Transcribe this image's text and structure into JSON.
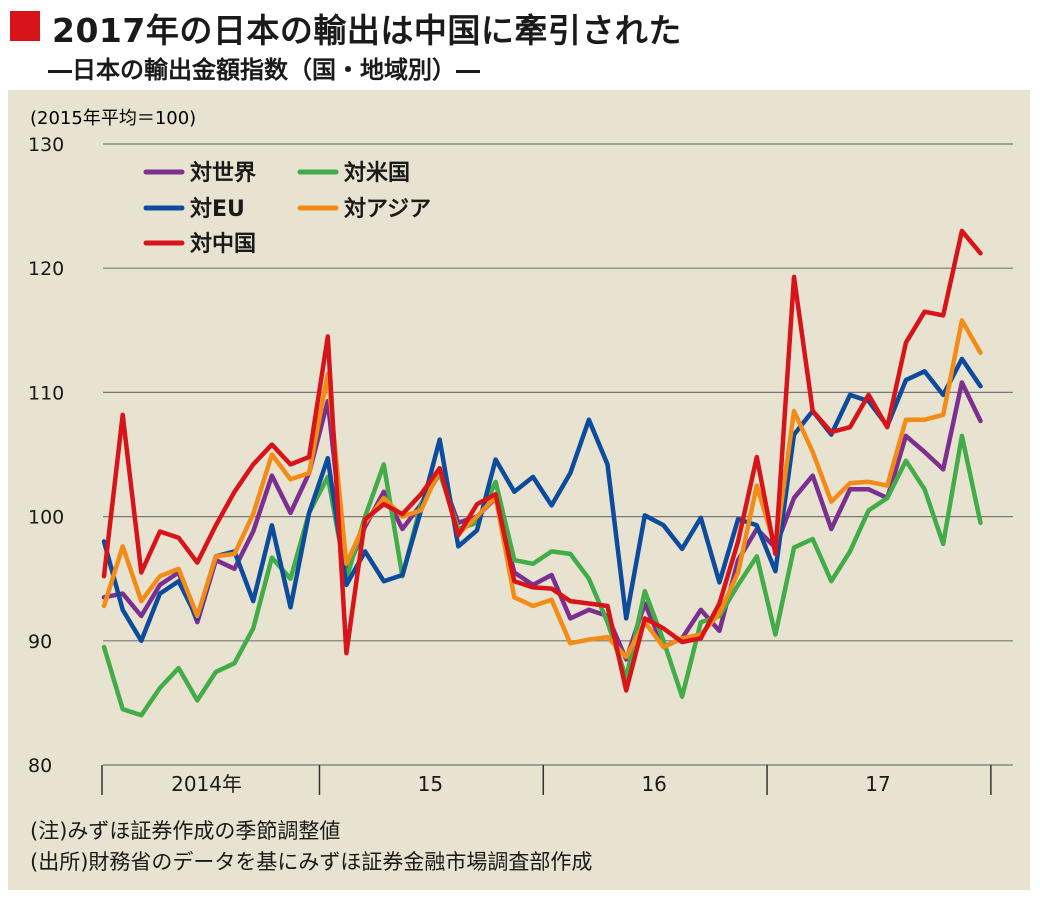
{
  "title": "2017年の日本の輸出は中国に牽引された",
  "subtitle": "―日本の輸出金額指数（国・地域別）―",
  "notes": [
    "(注)みずほ証券作成の季節調整値",
    "(出所)財務省のデータを基にみずほ証券金融市場調査部作成"
  ],
  "colors": {
    "accent": "#d7141a",
    "panel_bg": "#e8e2d0"
  },
  "chart_data": {
    "type": "line",
    "unit_label": "(2015年平均＝100)",
    "ylim": [
      80,
      130
    ],
    "yticks": [
      "80",
      "90",
      "100",
      "110",
      "120",
      "130"
    ],
    "grid": true,
    "legend_position": "top-left",
    "x_groups": [
      {
        "label": "2014年",
        "start": 1,
        "end": 12
      },
      {
        "label": "15",
        "start": 13,
        "end": 24
      },
      {
        "label": "16",
        "start": 25,
        "end": 36
      },
      {
        "label": "17",
        "start": 37,
        "end": 48
      }
    ],
    "x": [
      1,
      2,
      3,
      4,
      5,
      6,
      7,
      8,
      9,
      10,
      11,
      12,
      13,
      14,
      15,
      16,
      17,
      18,
      19,
      20,
      21,
      22,
      23,
      24,
      25,
      26,
      27,
      28,
      29,
      30,
      31,
      32,
      33,
      34,
      35,
      36,
      37,
      38,
      39,
      40,
      41,
      42,
      43,
      44,
      45,
      46,
      47,
      48
    ],
    "series": [
      {
        "name": "対世界",
        "color": "#7b2f8e",
        "values": [
          93.5,
          93.8,
          92,
          94.5,
          95.5,
          91.5,
          96.5,
          95.8,
          98.8,
          103.3,
          100.3,
          103.5,
          109.3,
          95.5,
          99.2,
          102,
          99,
          101,
          103.5,
          99.5,
          100,
          101.5,
          95.5,
          94.5,
          95.3,
          91.8,
          92.5,
          92,
          88.5,
          93,
          89.5,
          90.2,
          92.5,
          90.8,
          96.5,
          99,
          97.5,
          101.5,
          103.3,
          99,
          102.2,
          102.2,
          101.5,
          106.5,
          105.2,
          103.8,
          110.8,
          107.7
        ]
      },
      {
        "name": "対米国",
        "color": "#41ac48",
        "values": [
          89.5,
          84.5,
          84,
          86.2,
          87.8,
          85.2,
          87.5,
          88.2,
          91,
          96.7,
          95,
          100.3,
          103.2,
          95,
          100,
          104.2,
          95.2,
          101,
          103.5,
          99,
          99.5,
          102.8,
          96.5,
          96.2,
          97.2,
          97,
          95,
          91.5,
          87,
          94,
          90,
          85.5,
          91.5,
          92,
          94.5,
          96.8,
          90.5,
          97.5,
          98.2,
          94.8,
          97.2,
          100.5,
          101.5,
          104.5,
          102.2,
          97.8,
          106.5,
          99.5
        ]
      },
      {
        "name": "対EU",
        "color": "#0d4b9c",
        "values": [
          98,
          92.5,
          90,
          93.8,
          94.8,
          91.8,
          96.8,
          97.2,
          93.2,
          99.3,
          92.7,
          100.3,
          104.7,
          94.5,
          97.2,
          94.8,
          95.3,
          100.5,
          106.2,
          97.6,
          98.9,
          104.6,
          102,
          103.2,
          100.9,
          103.5,
          107.8,
          104.2,
          91.8,
          100.1,
          99.3,
          97.4,
          99.9,
          94.7,
          99.8,
          99.3,
          95.6,
          106.6,
          108.5,
          106.6,
          109.8,
          109.3,
          107.3,
          111,
          111.7,
          109.8,
          112.7,
          110.5
        ]
      },
      {
        "name": "対アジア",
        "color": "#f28c16",
        "values": [
          92.8,
          97.6,
          93.2,
          95.2,
          95.8,
          92,
          96.8,
          97,
          100.2,
          105,
          103,
          103.5,
          111.5,
          96.2,
          99.5,
          101.5,
          100,
          100.5,
          103.8,
          98.6,
          100,
          101.6,
          93.5,
          92.8,
          93.3,
          89.8,
          90.1,
          90.3,
          88.7,
          91.5,
          89.5,
          90.2,
          90.5,
          92.2,
          95.5,
          102.5,
          97.5,
          108.5,
          105.2,
          101.2,
          102.7,
          102.8,
          102.5,
          107.8,
          107.8,
          108.2,
          115.8,
          113.2
        ]
      },
      {
        "name": "対中国",
        "color": "#d7141a",
        "values": [
          95.2,
          108.2,
          95.5,
          98.8,
          98.3,
          96.3,
          99.3,
          102,
          104.2,
          105.8,
          104.2,
          104.8,
          114.5,
          89,
          99.8,
          101,
          100.2,
          101.8,
          103.9,
          98.5,
          101,
          101.8,
          94.8,
          94.3,
          94.2,
          93.2,
          93,
          92.8,
          86,
          91.8,
          91,
          89.9,
          90.2,
          93,
          98,
          104.8,
          97,
          119.3,
          108.5,
          106.8,
          107.2,
          109.8,
          107.2,
          114,
          116.5,
          116.2,
          123,
          121.2
        ]
      }
    ]
  }
}
